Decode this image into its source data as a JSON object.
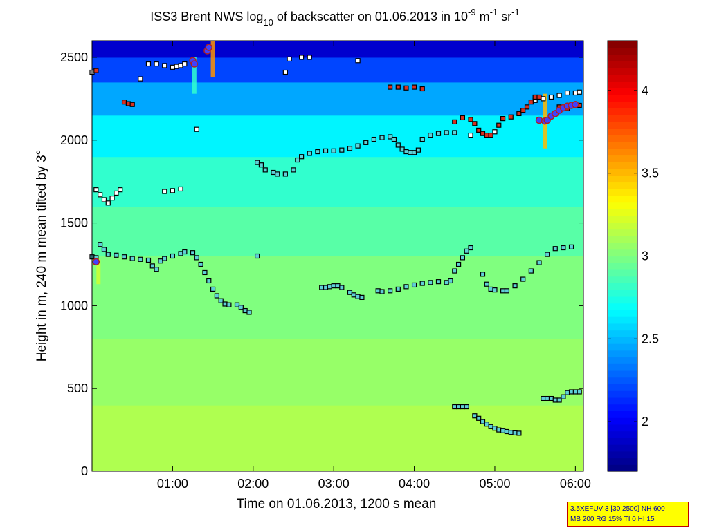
{
  "chart_data": {
    "type": "heatmap",
    "title_parts": {
      "a": "ISS3 Brent NWS log",
      "b": "10",
      "c": " of backscatter on 01.06.2013 in 10",
      "d": "-9",
      "e": " m",
      "f": "-1",
      "g": " sr",
      "h": "-1"
    },
    "xlabel": "Time on 01.06.2013, 1200 s mean",
    "ylabel": "Height in m, 240 m mean tilted by 3°",
    "xlim_hours": [
      0.0,
      6.1
    ],
    "ylim": [
      0,
      2600
    ],
    "x_ticks": [
      {
        "value": 1,
        "label": "01:00"
      },
      {
        "value": 2,
        "label": "02:00"
      },
      {
        "value": 3,
        "label": "03:00"
      },
      {
        "value": 4,
        "label": "04:00"
      },
      {
        "value": 5,
        "label": "05:00"
      },
      {
        "value": 6,
        "label": "06:00"
      }
    ],
    "y_ticks": [
      {
        "value": 0,
        "label": "0"
      },
      {
        "value": 500,
        "label": "500"
      },
      {
        "value": 1000,
        "label": "1000"
      },
      {
        "value": 1500,
        "label": "1500"
      },
      {
        "value": 2000,
        "label": "2000"
      },
      {
        "value": 2500,
        "label": "2500"
      }
    ],
    "colorbar": {
      "clim": [
        1.7,
        4.3
      ],
      "ticks": [
        {
          "value": 2,
          "label": "2"
        },
        {
          "value": 2.5,
          "label": "2.5"
        },
        {
          "value": 3,
          "label": "3"
        },
        {
          "value": 3.5,
          "label": "3.5"
        },
        {
          "value": 4,
          "label": "4"
        }
      ]
    },
    "background_field": [
      {
        "h_lo": 0,
        "h_hi": 400,
        "value": 3.12
      },
      {
        "h_lo": 400,
        "h_hi": 800,
        "value": 3.06
      },
      {
        "h_lo": 800,
        "h_hi": 1300,
        "value": 3.0
      },
      {
        "h_lo": 1300,
        "h_hi": 1600,
        "value": 2.9
      },
      {
        "h_lo": 1600,
        "h_hi": 1900,
        "value": 2.8
      },
      {
        "h_lo": 1900,
        "h_hi": 2150,
        "value": 2.65
      },
      {
        "h_lo": 2150,
        "h_hi": 2350,
        "value": 2.45
      },
      {
        "h_lo": 2350,
        "h_hi": 2500,
        "value": 2.2
      },
      {
        "h_lo": 2500,
        "h_hi": 2600,
        "value": 1.9
      }
    ],
    "layers": [
      {
        "name": "lowest layer",
        "kind": "cyan",
        "points": [
          [
            4.5,
            390
          ],
          [
            4.55,
            390
          ],
          [
            4.6,
            390
          ],
          [
            4.65,
            390
          ],
          [
            4.75,
            335
          ],
          [
            4.8,
            320
          ],
          [
            4.85,
            300
          ],
          [
            4.9,
            285
          ],
          [
            4.95,
            270
          ],
          [
            5.0,
            260
          ],
          [
            5.05,
            250
          ],
          [
            5.1,
            245
          ],
          [
            5.15,
            240
          ],
          [
            5.2,
            235
          ],
          [
            5.25,
            232
          ],
          [
            5.3,
            230
          ],
          [
            5.6,
            440
          ],
          [
            5.65,
            440
          ],
          [
            5.7,
            440
          ],
          [
            5.75,
            430
          ],
          [
            5.8,
            430
          ],
          [
            5.85,
            450
          ],
          [
            5.9,
            475
          ],
          [
            5.95,
            480
          ],
          [
            6.0,
            480
          ],
          [
            6.05,
            480
          ]
        ]
      },
      {
        "name": "middle layer A",
        "kind": "cyan",
        "points": [
          [
            0.0,
            1295
          ],
          [
            0.05,
            1290
          ],
          [
            0.1,
            1370
          ],
          [
            0.15,
            1340
          ],
          [
            0.2,
            1310
          ],
          [
            0.3,
            1305
          ],
          [
            0.4,
            1295
          ],
          [
            0.5,
            1285
          ],
          [
            0.6,
            1280
          ],
          [
            0.7,
            1275
          ],
          [
            0.75,
            1240
          ],
          [
            0.8,
            1220
          ],
          [
            0.85,
            1270
          ],
          [
            0.9,
            1285
          ],
          [
            1.0,
            1300
          ],
          [
            1.1,
            1315
          ],
          [
            1.15,
            1325
          ],
          [
            1.25,
            1320
          ],
          [
            1.3,
            1290
          ],
          [
            1.35,
            1250
          ],
          [
            1.4,
            1200
          ],
          [
            1.45,
            1150
          ],
          [
            1.5,
            1100
          ],
          [
            1.55,
            1060
          ],
          [
            1.6,
            1030
          ],
          [
            1.65,
            1010
          ],
          [
            1.7,
            1005
          ],
          [
            1.8,
            1005
          ],
          [
            1.85,
            990
          ],
          [
            1.9,
            970
          ],
          [
            1.95,
            960
          ],
          [
            2.05,
            1300
          ]
        ]
      },
      {
        "name": "middle layer B",
        "kind": "cyan",
        "points": [
          [
            2.85,
            1110
          ],
          [
            2.9,
            1110
          ],
          [
            2.95,
            1115
          ],
          [
            3.0,
            1120
          ],
          [
            3.05,
            1120
          ],
          [
            3.1,
            1110
          ],
          [
            3.2,
            1080
          ],
          [
            3.25,
            1065
          ],
          [
            3.3,
            1055
          ],
          [
            3.35,
            1050
          ],
          [
            3.55,
            1090
          ],
          [
            3.6,
            1085
          ],
          [
            3.7,
            1090
          ],
          [
            3.8,
            1100
          ],
          [
            3.9,
            1115
          ],
          [
            4.0,
            1125
          ],
          [
            4.1,
            1135
          ],
          [
            4.2,
            1140
          ],
          [
            4.3,
            1145
          ],
          [
            4.4,
            1140
          ],
          [
            4.45,
            1150
          ],
          [
            4.5,
            1210
          ],
          [
            4.55,
            1250
          ],
          [
            4.6,
            1290
          ],
          [
            4.65,
            1330
          ],
          [
            4.7,
            1350
          ],
          [
            4.85,
            1190
          ],
          [
            4.9,
            1130
          ],
          [
            4.95,
            1100
          ],
          [
            5.0,
            1095
          ],
          [
            5.1,
            1090
          ],
          [
            5.15,
            1090
          ],
          [
            5.25,
            1120
          ],
          [
            5.35,
            1160
          ],
          [
            5.45,
            1210
          ],
          [
            5.55,
            1260
          ],
          [
            5.65,
            1310
          ],
          [
            5.75,
            1345
          ],
          [
            5.85,
            1350
          ],
          [
            5.95,
            1355
          ]
        ]
      },
      {
        "name": "upper layer",
        "kind": "cyan",
        "points": [
          [
            2.05,
            1865
          ],
          [
            2.1,
            1850
          ],
          [
            2.15,
            1820
          ],
          [
            2.25,
            1805
          ],
          [
            2.3,
            1795
          ],
          [
            2.4,
            1795
          ],
          [
            2.5,
            1820
          ],
          [
            2.55,
            1880
          ],
          [
            2.6,
            1900
          ],
          [
            2.7,
            1920
          ],
          [
            2.8,
            1930
          ],
          [
            2.9,
            1935
          ],
          [
            3.0,
            1935
          ],
          [
            3.1,
            1940
          ],
          [
            3.2,
            1950
          ],
          [
            3.3,
            1965
          ],
          [
            3.4,
            1985
          ],
          [
            3.5,
            2005
          ],
          [
            3.6,
            2015
          ],
          [
            3.7,
            2020
          ],
          [
            3.75,
            2005
          ],
          [
            3.8,
            1970
          ],
          [
            3.85,
            1945
          ],
          [
            3.9,
            1930
          ],
          [
            3.95,
            1925
          ],
          [
            4.0,
            1925
          ],
          [
            4.05,
            1940
          ],
          [
            4.1,
            2005
          ],
          [
            4.2,
            2030
          ],
          [
            4.3,
            2040
          ],
          [
            4.4,
            2045
          ],
          [
            4.5,
            2045
          ]
        ]
      },
      {
        "name": "white markers",
        "kind": "white",
        "points": [
          [
            0.0,
            2410
          ],
          [
            0.05,
            1700
          ],
          [
            0.1,
            1670
          ],
          [
            0.15,
            1640
          ],
          [
            0.2,
            1620
          ],
          [
            0.25,
            1650
          ],
          [
            0.3,
            1680
          ],
          [
            0.35,
            1700
          ],
          [
            0.6,
            2370
          ],
          [
            0.7,
            2460
          ],
          [
            0.8,
            2460
          ],
          [
            0.9,
            2450
          ],
          [
            1.0,
            2440
          ],
          [
            1.05,
            2445
          ],
          [
            1.1,
            2450
          ],
          [
            1.15,
            2460
          ],
          [
            1.3,
            2065
          ],
          [
            0.9,
            1690
          ],
          [
            1.0,
            1695
          ],
          [
            1.1,
            1705
          ],
          [
            2.4,
            2410
          ],
          [
            2.45,
            2490
          ],
          [
            2.6,
            2500
          ],
          [
            2.7,
            2500
          ],
          [
            3.3,
            2480
          ],
          [
            4.7,
            2030
          ],
          [
            5.0,
            2050
          ],
          [
            5.5,
            2240
          ],
          [
            5.6,
            2250
          ],
          [
            5.7,
            2260
          ],
          [
            5.8,
            2270
          ],
          [
            5.9,
            2285
          ],
          [
            6.0,
            2285
          ],
          [
            6.05,
            2290
          ]
        ]
      },
      {
        "name": "red markers",
        "kind": "red",
        "points": [
          [
            0.05,
            2420
          ],
          [
            0.4,
            2230
          ],
          [
            0.45,
            2220
          ],
          [
            0.5,
            2215
          ],
          [
            3.7,
            2320
          ],
          [
            3.8,
            2320
          ],
          [
            3.9,
            2315
          ],
          [
            4.0,
            2320
          ],
          [
            4.1,
            2310
          ],
          [
            4.5,
            2110
          ],
          [
            4.6,
            2135
          ],
          [
            4.7,
            2125
          ],
          [
            4.75,
            2100
          ],
          [
            4.8,
            2060
          ],
          [
            4.85,
            2040
          ],
          [
            4.9,
            2030
          ],
          [
            4.95,
            2030
          ],
          [
            5.05,
            2090
          ],
          [
            5.1,
            2130
          ],
          [
            5.2,
            2140
          ],
          [
            5.3,
            2160
          ],
          [
            5.35,
            2180
          ],
          [
            5.4,
            2200
          ],
          [
            5.45,
            2230
          ],
          [
            5.5,
            2260
          ],
          [
            5.55,
            2260
          ],
          [
            5.8,
            2200
          ],
          [
            5.9,
            2190
          ],
          [
            6.0,
            2210
          ],
          [
            6.05,
            2210
          ]
        ]
      },
      {
        "name": "cloud base dots",
        "kind": "blue",
        "points": [
          [
            0.05,
            1265
          ],
          [
            1.25,
            2480
          ],
          [
            1.27,
            2460
          ],
          [
            1.43,
            2540
          ],
          [
            1.45,
            2560
          ],
          [
            5.55,
            2120
          ],
          [
            5.62,
            2115
          ],
          [
            5.65,
            2120
          ],
          [
            5.7,
            2145
          ],
          [
            5.75,
            2160
          ],
          [
            5.8,
            2180
          ],
          [
            5.85,
            2195
          ],
          [
            5.9,
            2205
          ],
          [
            5.95,
            2210
          ],
          [
            6.0,
            2215
          ]
        ]
      }
    ],
    "bright_streaks": [
      {
        "t": 1.5,
        "h_lo": 2380,
        "h_hi": 2600,
        "value": 3.6
      },
      {
        "t": 1.27,
        "h_lo": 2280,
        "h_hi": 2500,
        "value": 2.8
      },
      {
        "t": 5.62,
        "h_lo": 1950,
        "h_hi": 2280,
        "value": 3.5
      },
      {
        "t": 0.08,
        "h_lo": 1130,
        "h_hi": 1280,
        "value": 3.2
      }
    ]
  },
  "param_box": {
    "line1": "3.5XEFUV 3 [30 2500] NH 600",
    "line2": "MB 200 RG 15% TI 0 HI 15"
  }
}
